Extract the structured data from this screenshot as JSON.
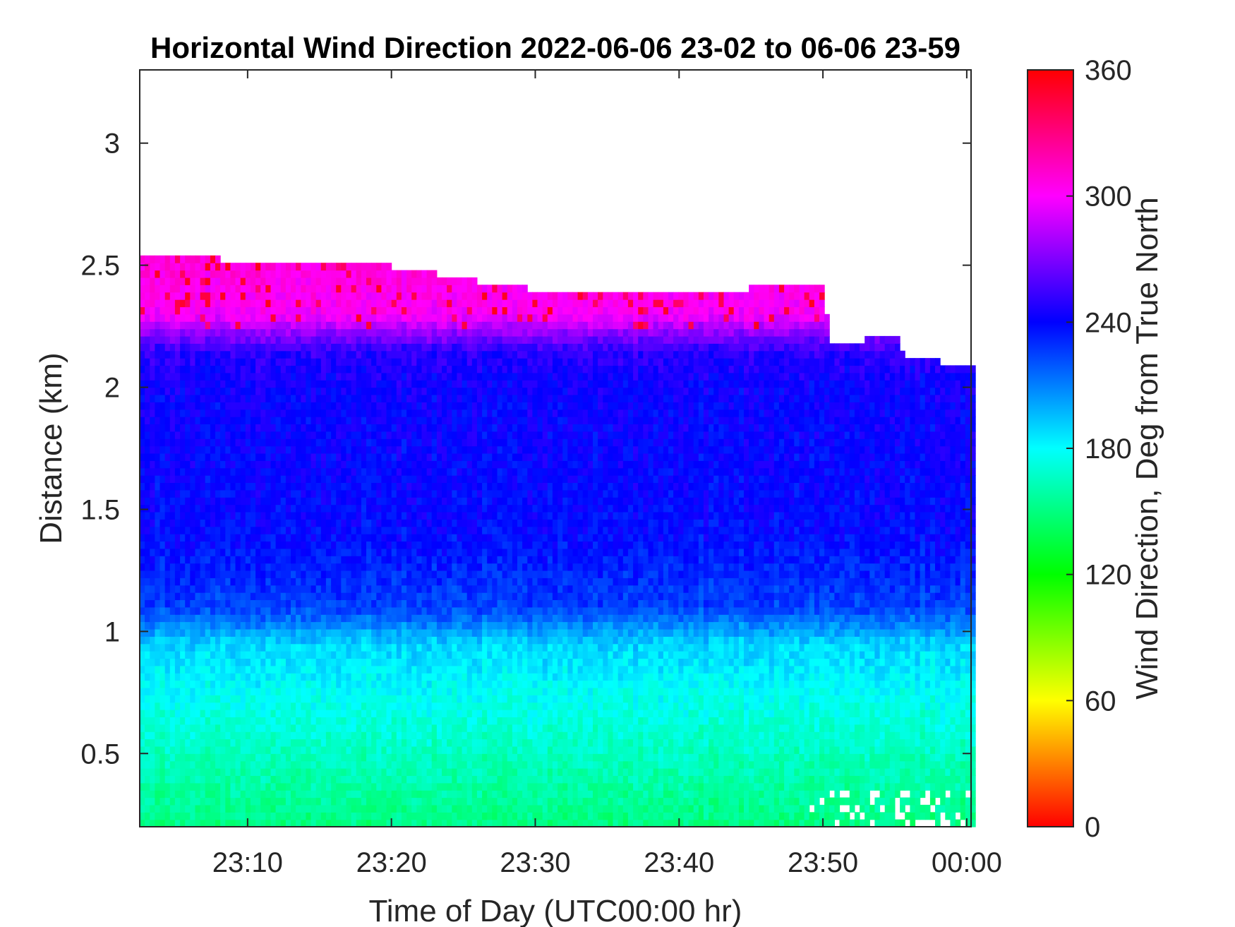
{
  "chart_data": {
    "type": "heatmap",
    "title": "Horizontal Wind Direction 2022-06-06 23-02 to 06-06 23-59",
    "xlabel": "Time of Day (UTC00:00 hr)",
    "ylabel": "Distance (km)",
    "colorbar_label": "Wind Direction, Deg from True North",
    "x_range_minutes": [
      1382.5,
      1440.3
    ],
    "y_range_km": [
      0.2,
      3.3
    ],
    "x_ticks": [
      {
        "value": 1390,
        "label": "23:10"
      },
      {
        "value": 1400,
        "label": "23:20"
      },
      {
        "value": 1410,
        "label": "23:30"
      },
      {
        "value": 1420,
        "label": "23:40"
      },
      {
        "value": 1430,
        "label": "23:50"
      },
      {
        "value": 1440,
        "label": "00:00"
      }
    ],
    "y_ticks": [
      {
        "value": 0.5,
        "label": "0.5"
      },
      {
        "value": 1,
        "label": "1"
      },
      {
        "value": 1.5,
        "label": "1.5"
      },
      {
        "value": 2,
        "label": "2"
      },
      {
        "value": 2.5,
        "label": "2.5"
      },
      {
        "value": 3,
        "label": "3"
      }
    ],
    "colorbar_range": [
      0,
      360
    ],
    "colorbar_ticks": [
      {
        "value": 0,
        "label": "0"
      },
      {
        "value": 60,
        "label": "60"
      },
      {
        "value": 120,
        "label": "120"
      },
      {
        "value": 180,
        "label": "180"
      },
      {
        "value": 240,
        "label": "240"
      },
      {
        "value": 300,
        "label": "300"
      },
      {
        "value": 360,
        "label": "360"
      }
    ],
    "colormap": "hsv",
    "data_gap_minutes": [
      1412.8,
      1413.1
    ],
    "data_top_km": [
      {
        "t": 1382.5,
        "h": 2.54
      },
      {
        "t": 1390,
        "h": 2.5
      },
      {
        "t": 1400,
        "h": 2.48
      },
      {
        "t": 1404,
        "h": 2.44
      },
      {
        "t": 1408,
        "h": 2.4
      },
      {
        "t": 1412.8,
        "h": 2.37
      },
      {
        "t": 1413.1,
        "h": 2.39
      },
      {
        "t": 1418,
        "h": 2.36
      },
      {
        "t": 1425,
        "h": 2.39
      },
      {
        "t": 1430,
        "h": 2.41
      },
      {
        "t": 1430.5,
        "h": 2.16
      },
      {
        "t": 1435,
        "h": 2.2
      },
      {
        "t": 1436,
        "h": 2.1
      },
      {
        "t": 1440.3,
        "h": 2.08
      }
    ],
    "direction_profile_deg": [
      {
        "h": 0.2,
        "deg": 150
      },
      {
        "h": 0.5,
        "deg": 165
      },
      {
        "h": 0.75,
        "deg": 178
      },
      {
        "h": 0.95,
        "deg": 190
      },
      {
        "h": 1.1,
        "deg": 225
      },
      {
        "h": 1.4,
        "deg": 238
      },
      {
        "h": 2.0,
        "deg": 242
      },
      {
        "h": 2.15,
        "deg": 250
      },
      {
        "h": 2.3,
        "deg": 300
      },
      {
        "h": 2.6,
        "deg": 310
      }
    ]
  }
}
